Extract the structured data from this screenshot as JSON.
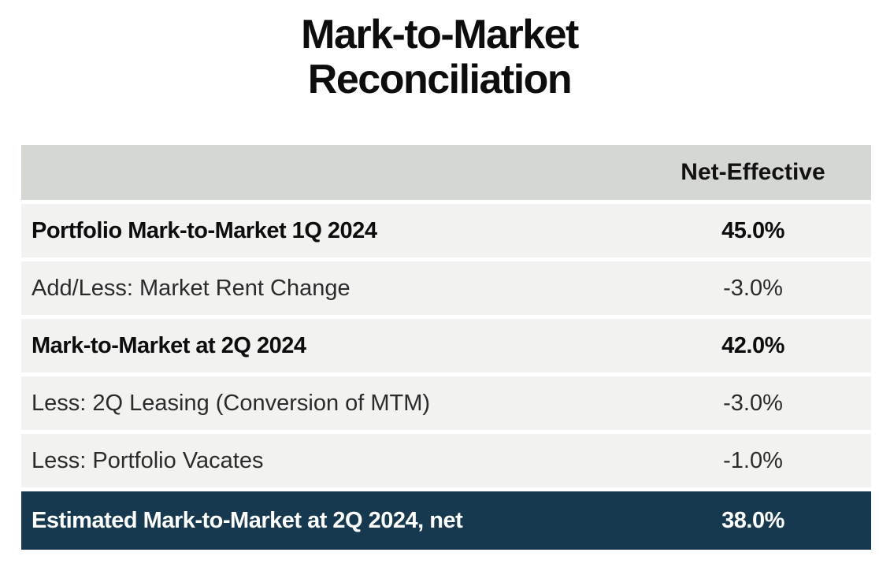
{
  "title": {
    "line1": "Mark-to-Market",
    "line2": "Reconciliation"
  },
  "table": {
    "header": {
      "label": "",
      "value": "Net-Effective"
    },
    "rows": [
      {
        "label": "Portfolio Mark-to-Market 1Q 2024",
        "value": "45.0%"
      },
      {
        "label": "Add/Less: Market Rent Change",
        "value": "-3.0%"
      },
      {
        "label": "Mark-to-Market at 2Q 2024",
        "value": "42.0%"
      },
      {
        "label": "Less: 2Q Leasing (Conversion of MTM)",
        "value": "-3.0%"
      },
      {
        "label": "Less: Portfolio Vacates",
        "value": "-1.0%"
      },
      {
        "label": "Estimated Mark-to-Market at 2Q 2024, net",
        "value": "38.0%"
      }
    ]
  },
  "colors": {
    "header_bg": "#d5d7d3",
    "row_bg": "#f2f2f0",
    "highlight_bg": "#17394f",
    "highlight_text": "#ffffff",
    "text": "#2b2b2b",
    "bold_text": "#0d0d0d"
  },
  "chart_data": {
    "type": "table",
    "title": "Mark-to-Market Reconciliation",
    "columns": [
      "",
      "Net-Effective"
    ],
    "rows": [
      [
        "Portfolio Mark-to-Market 1Q 2024",
        "45.0%"
      ],
      [
        "Add/Less: Market Rent Change",
        "-3.0%"
      ],
      [
        "Mark-to-Market at 2Q 2024",
        "42.0%"
      ],
      [
        "Less: 2Q Leasing (Conversion of MTM)",
        "-3.0%"
      ],
      [
        "Less: Portfolio Vacates",
        "-1.0%"
      ],
      [
        "Estimated Mark-to-Market at 2Q 2024, net",
        "38.0%"
      ]
    ],
    "values_numeric_percent": [
      45.0,
      -3.0,
      42.0,
      -3.0,
      -1.0,
      38.0
    ],
    "emphasized_rows": [
      0,
      2,
      5
    ],
    "total_row_index": 5
  }
}
